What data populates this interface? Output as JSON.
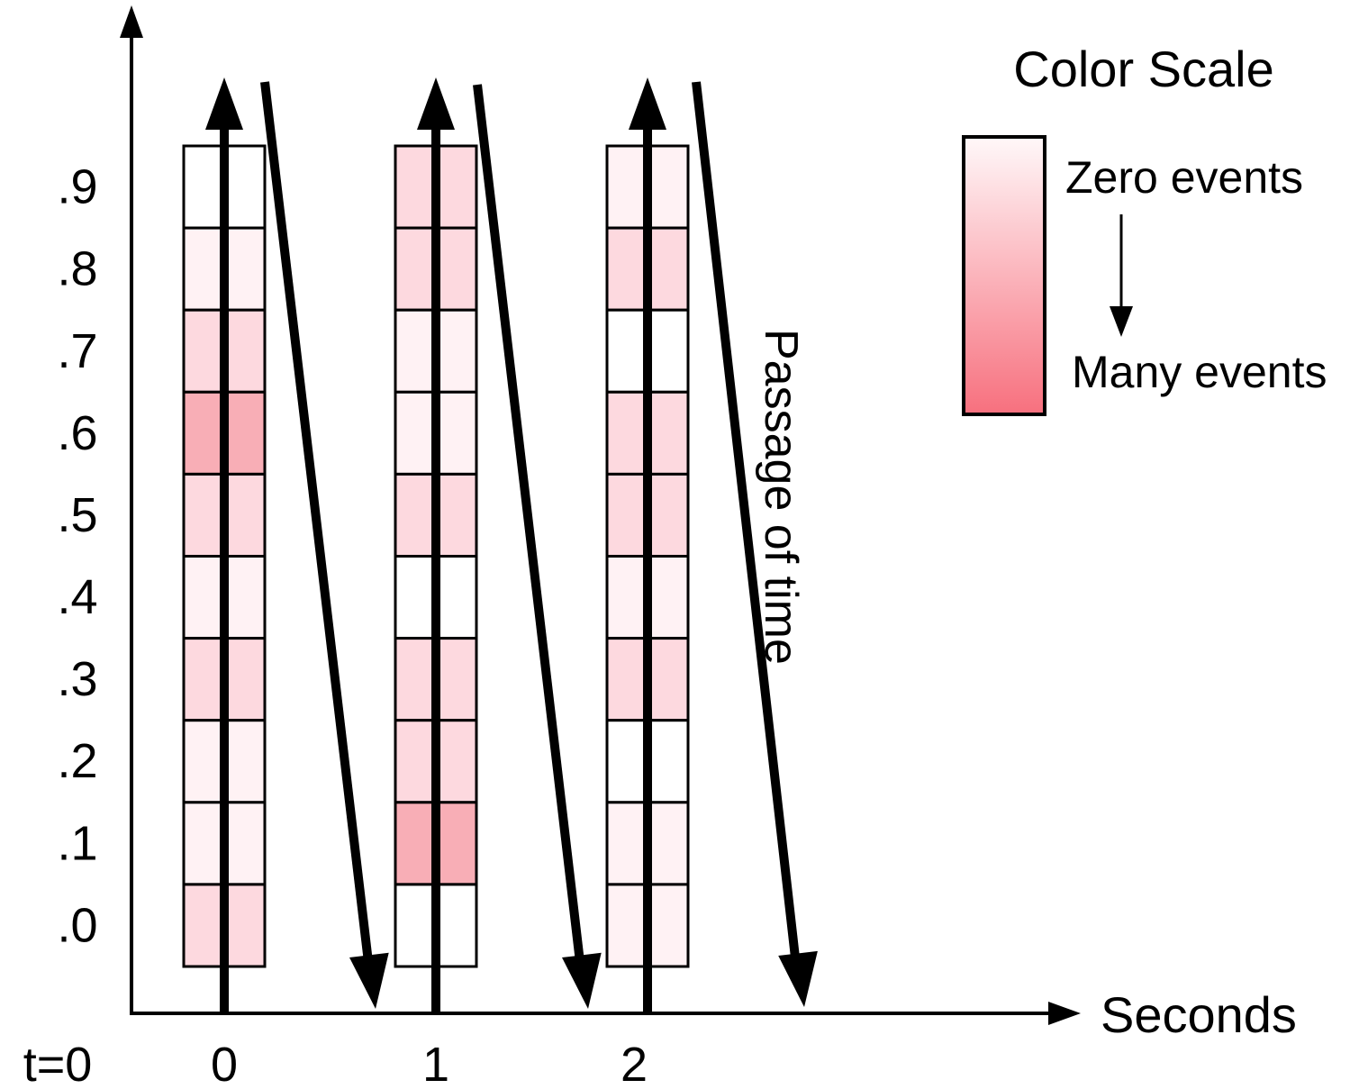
{
  "y_tick_labels": [
    ".9",
    ".8",
    ".7",
    ".6",
    ".5",
    ".4",
    ".3",
    ".2",
    ".1",
    ".0"
  ],
  "x_tick_labels": [
    "0",
    "1",
    "2"
  ],
  "origin_label": "t=0",
  "x_axis_label": "Seconds",
  "arrow_label": "Passage of time",
  "legend": {
    "title": "Color Scale",
    "top_label": "Zero events",
    "bottom_label": "Many events",
    "gradient_top_color": "#fff8f9",
    "gradient_bottom_color": "#f7707e"
  },
  "intensity_levels": 7,
  "columns": [
    {
      "second": "0",
      "levels": [
        0,
        1,
        2,
        4,
        2,
        1,
        2,
        1,
        1,
        2
      ]
    },
    {
      "second": "1",
      "levels": [
        2,
        2,
        1,
        1,
        2,
        0,
        2,
        2,
        4,
        0
      ]
    },
    {
      "second": "2",
      "levels": [
        1,
        2,
        0,
        2,
        2,
        1,
        2,
        0,
        1,
        1
      ]
    }
  ],
  "colors": {
    "level_0": "#ffffff",
    "level_1": "#fff2f4",
    "level_2": "#fdd9df",
    "level_4": "#f8aeb6",
    "stroke": "#000000"
  }
}
